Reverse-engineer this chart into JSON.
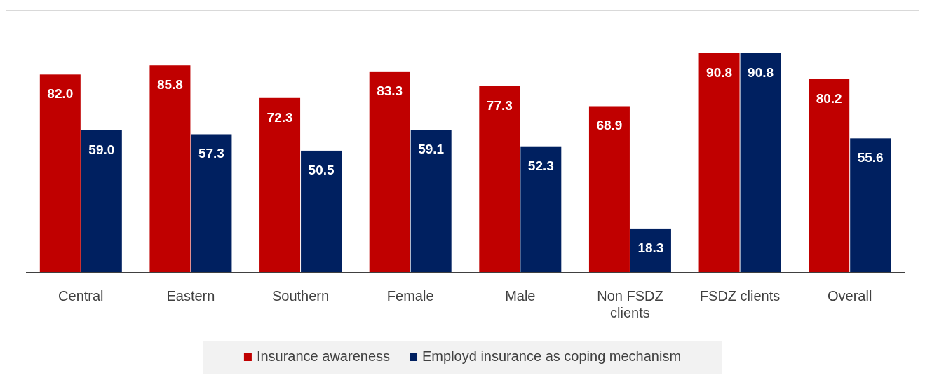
{
  "chart_data": {
    "type": "bar",
    "categories": [
      "Central",
      "Eastern",
      "Southern",
      "Female",
      "Male",
      "Non FSDZ clients",
      "FSDZ clients",
      "Overall"
    ],
    "series": [
      {
        "name": "Insurance awareness",
        "color": "#c00000",
        "values": [
          82.0,
          85.8,
          72.3,
          83.3,
          77.3,
          68.9,
          90.8,
          80.2
        ],
        "value_labels": [
          "82.0",
          "85.8",
          "72.3",
          "83.3",
          "77.3",
          "68.9",
          "90.8",
          "80.2"
        ]
      },
      {
        "name": "Employd insurance as coping mechanism",
        "color": "#002060",
        "values": [
          59.0,
          57.3,
          50.5,
          59.1,
          52.3,
          18.3,
          90.8,
          55.6
        ],
        "value_labels": [
          "59.0",
          "57.3",
          "50.5",
          "59.1",
          "52.3",
          "18.3",
          "90.8",
          "55.6"
        ]
      }
    ],
    "legend": "bottom"
  }
}
